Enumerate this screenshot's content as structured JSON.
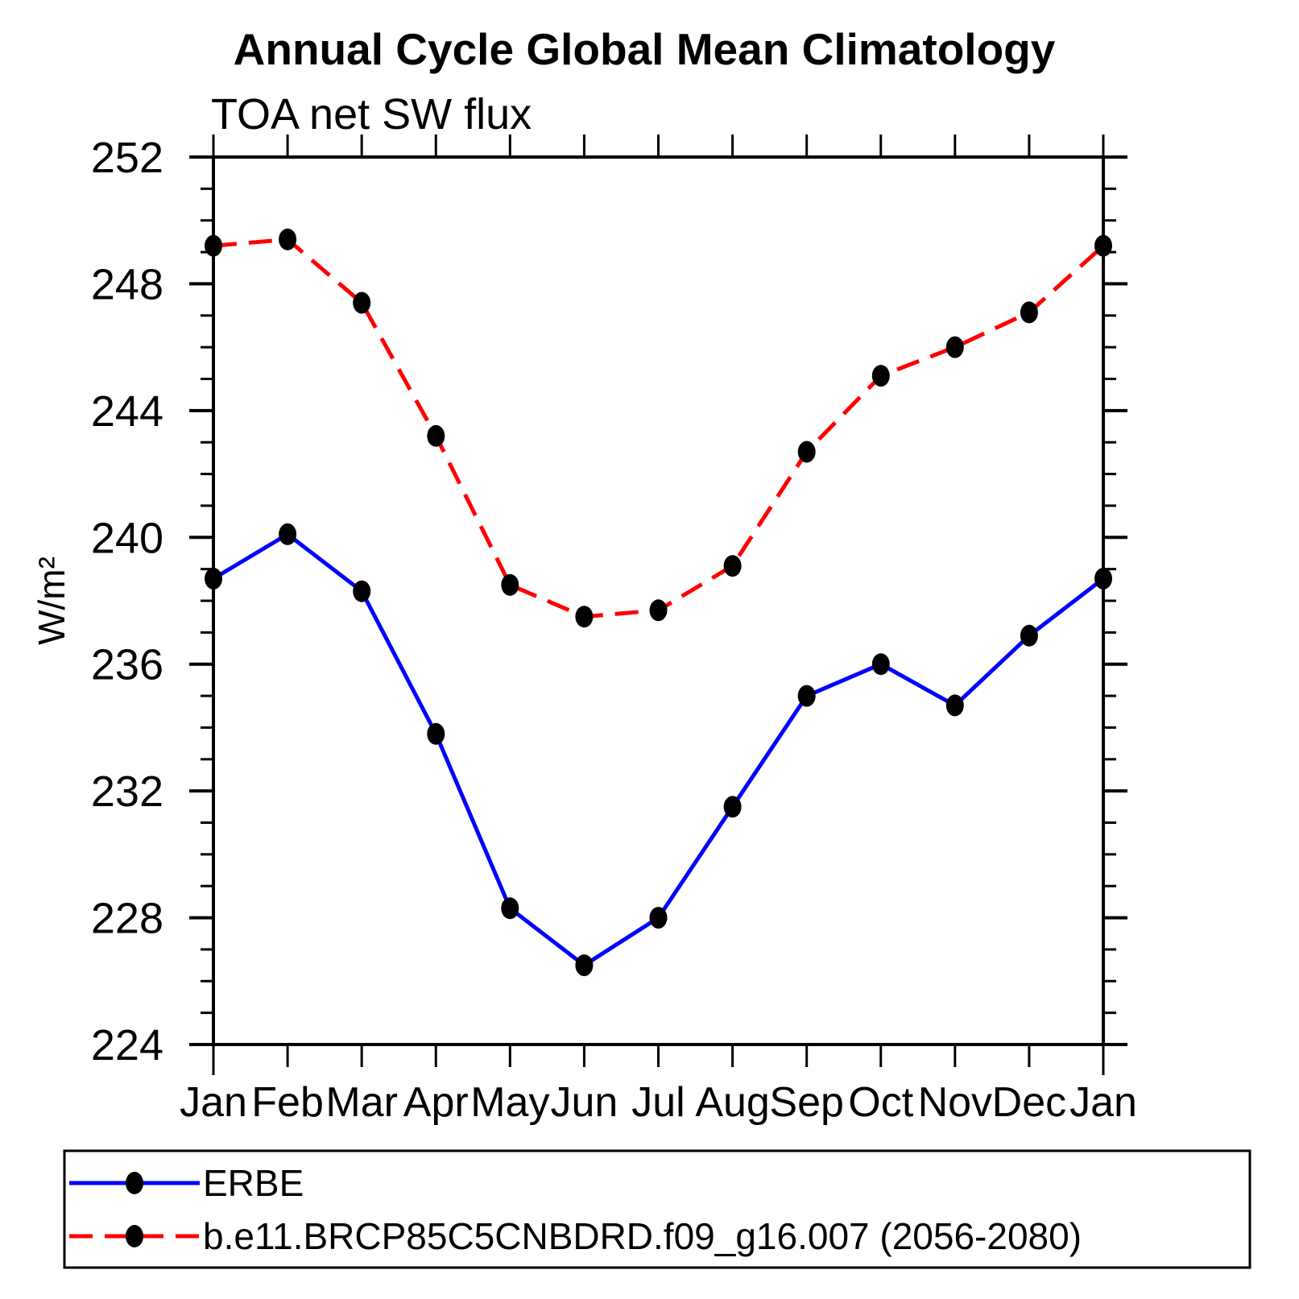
{
  "chart_data": {
    "type": "line",
    "title": "Annual Cycle Global Mean Climatology",
    "subtitle": "TOA net SW flux",
    "ylabel": "W/m²",
    "categories": [
      "Jan",
      "Feb",
      "Mar",
      "Apr",
      "May",
      "Jun",
      "Jul",
      "Aug",
      "Sep",
      "Oct",
      "Nov",
      "Dec",
      "Jan"
    ],
    "ylim": [
      224,
      252
    ],
    "yticks_major": [
      224,
      228,
      232,
      236,
      240,
      244,
      248,
      252
    ],
    "ytick_minor_step": 1,
    "grid": false,
    "legend_position": "bottom-box",
    "series": [
      {
        "name": "ERBE",
        "color": "#0000ff",
        "line_style": "solid",
        "marker": "filled-circle",
        "marker_color": "#000000",
        "values": [
          238.7,
          240.1,
          238.3,
          233.8,
          228.3,
          226.5,
          228.0,
          231.5,
          235.0,
          236.0,
          234.7,
          236.9,
          238.7
        ]
      },
      {
        "name": "b.e11.BRCP85C5CNBDRD.f09_g16.007 (2056-2080)",
        "color": "#ff0000",
        "line_style": "dashed",
        "marker": "filled-circle",
        "marker_color": "#000000",
        "values": [
          249.2,
          249.4,
          247.4,
          243.2,
          238.5,
          237.5,
          237.7,
          239.1,
          242.7,
          245.1,
          246.0,
          247.1,
          249.2
        ]
      }
    ],
    "axis_color": "#000000"
  }
}
